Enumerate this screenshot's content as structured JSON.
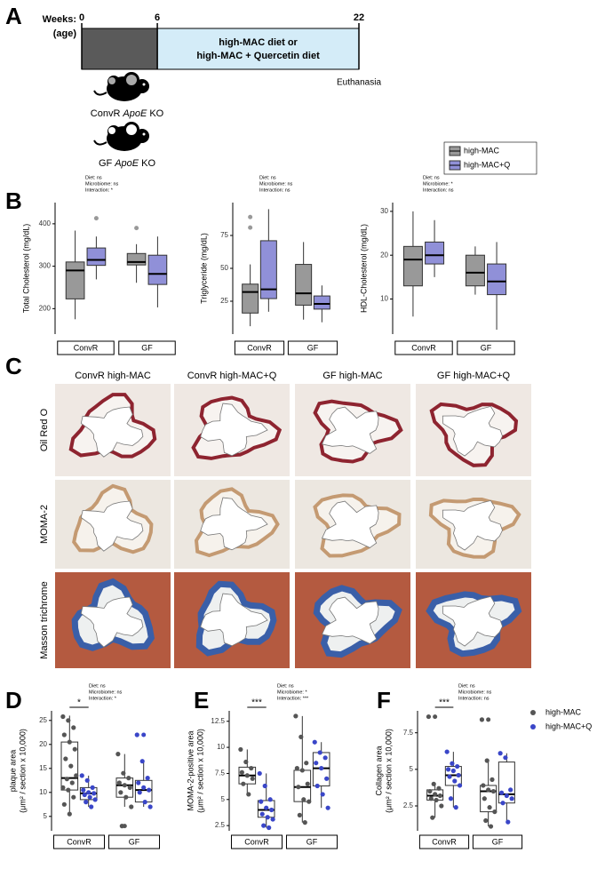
{
  "panel_labels": [
    "A",
    "B",
    "C",
    "D",
    "E",
    "F"
  ],
  "timeline": {
    "label": [
      "Weeks:",
      "(age)"
    ],
    "ticks": [
      0,
      6,
      22
    ],
    "phase_text": [
      "high-MAC diet or",
      "high-MAC + Quercetin diet"
    ],
    "end_label": "Euthanasia",
    "groups": [
      {
        "pre": "ConvR",
        "gene": "ApoE",
        "post": "KO"
      },
      {
        "pre": "GF",
        "gene": "ApoE",
        "post": "KO"
      }
    ]
  },
  "histology": {
    "columns": [
      "ConvR high-MAC",
      "ConvR high-MAC+Q",
      "GF high-MAC",
      "GF high-MAC+Q"
    ],
    "rows": [
      "Oil Red O",
      "MOMA-2",
      "Masson trichrome"
    ]
  },
  "chart_data": [
    {
      "type": "box",
      "ylabel": [
        "Total Cholesterol (mg/dL)"
      ],
      "ylim": [
        140,
        450
      ],
      "yticks": [
        200,
        300,
        400
      ],
      "annotation": [
        "Diet: ns",
        "Microbiome: ns",
        "Interaction: *"
      ],
      "categories": [
        "ConvR",
        "GF"
      ],
      "series": [
        {
          "color": "#999999",
          "boxes": [
            {
              "whislo": 175,
              "q1": 223,
              "med": 290,
              "q3": 310,
              "whishi": 384,
              "fliers": []
            },
            {
              "whislo": 261,
              "q1": 303,
              "med": 310,
              "q3": 330,
              "whishi": 352,
              "fliers": [
                390
              ]
            }
          ]
        },
        {
          "color": "#9090d8",
          "boxes": [
            {
              "whislo": 269,
              "q1": 302,
              "med": 315,
              "q3": 343,
              "whishi": 370,
              "fliers": [
                413
              ]
            },
            {
              "whislo": 203,
              "q1": 257,
              "med": 282,
              "q3": 326,
              "whishi": 370,
              "fliers": []
            }
          ]
        }
      ]
    },
    {
      "type": "box",
      "ylabel": [
        "Triglyceride (mg/dL)"
      ],
      "ylim": [
        0,
        100
      ],
      "yticks": [
        25,
        50,
        75
      ],
      "annotation": [
        "Diet: ns",
        "Microbiome: ns",
        "Interaction: ns"
      ],
      "categories": [
        "ConvR",
        "GF"
      ],
      "series": [
        {
          "color": "#999999",
          "boxes": [
            {
              "whislo": 6,
              "q1": 16,
              "med": 32,
              "q3": 38,
              "whishi": 53,
              "fliers": [
                81,
                89
              ]
            },
            {
              "whislo": 11,
              "q1": 22,
              "med": 31,
              "q3": 53,
              "whishi": 70,
              "fliers": []
            }
          ]
        },
        {
          "color": "#9090d8",
          "boxes": [
            {
              "whislo": 17,
              "q1": 27,
              "med": 34,
              "q3": 71,
              "whishi": 95,
              "fliers": []
            },
            {
              "whislo": 9,
              "q1": 19,
              "med": 23,
              "q3": 29,
              "whishi": 37,
              "fliers": []
            }
          ]
        }
      ]
    },
    {
      "type": "box",
      "ylabel": [
        "HDL-Cholesterol (mg/dL)"
      ],
      "ylim": [
        2,
        32
      ],
      "yticks": [
        10,
        20,
        30
      ],
      "annotation": [
        "Diet: ns",
        "Microbiome: *",
        "Interaction: ns"
      ],
      "categories": [
        "ConvR",
        "GF"
      ],
      "series": [
        {
          "name": "high-MAC",
          "color": "#999999",
          "boxes": [
            {
              "whislo": 6,
              "q1": 13,
              "med": 19,
              "q3": 22,
              "whishi": 30,
              "fliers": []
            },
            {
              "whislo": 11,
              "q1": 13,
              "med": 16,
              "q3": 20,
              "whishi": 22,
              "fliers": []
            }
          ]
        },
        {
          "name": "high-MAC+Q",
          "color": "#9090d8",
          "boxes": [
            {
              "whislo": 15,
              "q1": 18,
              "med": 20,
              "q3": 23,
              "whishi": 28,
              "fliers": []
            },
            {
              "whislo": 3,
              "q1": 11,
              "med": 14,
              "q3": 18,
              "whishi": 23,
              "fliers": []
            }
          ]
        }
      ]
    },
    {
      "type": "box",
      "ylabel": [
        "plaque area",
        "(μm² / section x 10,000)"
      ],
      "ylim": [
        2,
        27
      ],
      "yticks": [
        5,
        10,
        15,
        20,
        25
      ],
      "annotation": [
        "Diet: ns",
        "Microbiome: ns",
        "Interaction: *"
      ],
      "significance": "*",
      "box_fill": "#ffffff",
      "categories": [
        "ConvR",
        "GF"
      ],
      "series": [
        {
          "color": "#555555",
          "boxes": [
            {
              "whislo": 5.5,
              "q1": 10.5,
              "med": 13,
              "q3": 20.5,
              "whishi": 26,
              "fliers": []
            },
            {
              "whislo": 7,
              "q1": 9,
              "med": 11.5,
              "q3": 13,
              "whishi": 18,
              "fliers": [
                3
              ]
            }
          ],
          "points": [
            [
              25.8,
              25,
              23.5,
              22,
              20.5,
              19,
              17,
              15.5,
              13.5,
              12.8,
              12,
              11,
              10.5,
              9,
              7.5,
              5.5
            ],
            [
              18,
              14,
              13,
              12,
              11.5,
              11,
              10,
              9,
              7,
              3
            ]
          ]
        },
        {
          "color": "#3a46c8",
          "boxes": [
            {
              "whislo": 7,
              "q1": 8.5,
              "med": 9.8,
              "q3": 11,
              "whishi": 13.5,
              "fliers": []
            },
            {
              "whislo": 7,
              "q1": 8,
              "med": 10.5,
              "q3": 12.5,
              "whishi": 16.5,
              "fliers": [
                22
              ]
            }
          ],
          "points": [
            [
              13.5,
              12.5,
              11,
              10.5,
              10,
              9.8,
              9.5,
              9,
              8.5,
              8,
              7
            ],
            [
              22,
              16.5,
              13,
              12,
              11,
              10.5,
              10,
              8,
              7
            ]
          ]
        }
      ]
    },
    {
      "type": "box",
      "ylabel": [
        "MOMA-2-positive area",
        "(μm² / section x 10,000)"
      ],
      "ylim": [
        2,
        13.5
      ],
      "yticks": [
        2.5,
        5.0,
        7.5,
        10.0,
        12.5
      ],
      "annotation": [
        "Diet: ns",
        "Microbiome: *",
        "Interaction: ***"
      ],
      "significance": "***",
      "box_fill": "#ffffff",
      "categories": [
        "ConvR",
        "GF"
      ],
      "series": [
        {
          "color": "#555555",
          "boxes": [
            {
              "whislo": 5.5,
              "q1": 6.5,
              "med": 7.3,
              "q3": 8.1,
              "whishi": 9.8,
              "fliers": []
            },
            {
              "whislo": 2.8,
              "q1": 4.8,
              "med": 6.2,
              "q3": 7.8,
              "whishi": 13,
              "fliers": []
            }
          ],
          "points": [
            [
              9.8,
              8.6,
              8,
              7.6,
              7.3,
              7,
              6.5,
              5.5
            ],
            [
              13,
              11,
              8.5,
              8,
              7.8,
              6.5,
              6.2,
              5,
              4.8,
              3.5,
              2.8
            ]
          ]
        },
        {
          "color": "#3a46c8",
          "boxes": [
            {
              "whislo": 2.3,
              "q1": 3.3,
              "med": 4,
              "q3": 4.9,
              "whishi": 7.5,
              "fliers": []
            },
            {
              "whislo": 4.2,
              "q1": 6.3,
              "med": 8,
              "q3": 9.5,
              "whishi": 10.5,
              "fliers": []
            }
          ],
          "points": [
            [
              7.5,
              6.3,
              5,
              4.8,
              4.2,
              4,
              3.6,
              3.3,
              3.1,
              2.5,
              2.3
            ],
            [
              10.5,
              9.5,
              9,
              8.5,
              8,
              7,
              6.3,
              5.5,
              4.2
            ]
          ]
        }
      ]
    },
    {
      "type": "box",
      "ylabel": [
        "Collagen area",
        "(μm² / section x 10,000)"
      ],
      "ylim": [
        0.8,
        9
      ],
      "yticks": [
        2.5,
        5.0,
        7.5
      ],
      "annotation": [
        "Diet: ns",
        "Microbiome: ns",
        "Interaction: ns"
      ],
      "significance": "***",
      "box_fill": "#ffffff",
      "categories": [
        "ConvR",
        "GF"
      ],
      "series": [
        {
          "name": "high-MAC",
          "color": "#555555",
          "boxes": [
            {
              "whislo": 1.7,
              "q1": 2.9,
              "med": 3.2,
              "q3": 3.6,
              "whishi": 4,
              "fliers": [
                8.6
              ]
            },
            {
              "whislo": 1.1,
              "q1": 2.1,
              "med": 3.5,
              "q3": 3.9,
              "whishi": 5.6,
              "fliers": [
                8.4
              ]
            }
          ],
          "points": [
            [
              8.6,
              4,
              3.7,
              3.5,
              3.3,
              3.2,
              3,
              2.9,
              2.5,
              1.7
            ],
            [
              8.4,
              5.6,
              4.3,
              3.9,
              3.6,
              3.5,
              3,
              2.4,
              2.1,
              1.5,
              1.1
            ]
          ]
        },
        {
          "name": "high-MAC+Q",
          "color": "#3a46c8",
          "boxes": [
            {
              "whislo": 2.4,
              "q1": 3.9,
              "med": 4.6,
              "q3": 5.2,
              "whishi": 6.2,
              "fliers": []
            },
            {
              "whislo": 1.4,
              "q1": 2.7,
              "med": 3.3,
              "q3": 5.5,
              "whishi": 6.1,
              "fliers": []
            }
          ],
          "points": [
            [
              6.2,
              5.4,
              5.2,
              5,
              4.9,
              4.6,
              4.5,
              4.2,
              3.9,
              3,
              2.4
            ],
            [
              6.1,
              5.8,
              3.6,
              3.4,
              3.2,
              3,
              2.7,
              1.4
            ]
          ]
        }
      ]
    }
  ]
}
